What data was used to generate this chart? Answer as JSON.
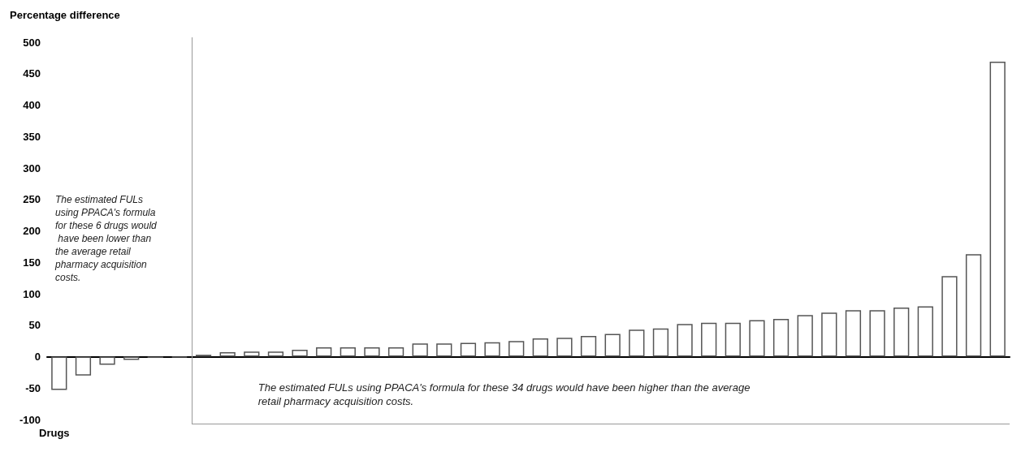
{
  "chart_data": {
    "type": "bar",
    "ylabel": "Percentage difference",
    "xlabel": "Drugs",
    "categories": [
      null,
      null,
      null,
      null,
      null,
      null,
      null,
      null,
      null,
      null,
      null,
      null,
      null,
      null,
      null,
      null,
      null,
      null,
      null,
      null,
      null,
      null,
      null,
      null,
      null,
      null,
      null,
      null,
      null,
      null,
      null,
      null,
      null,
      null,
      null,
      null,
      null,
      null,
      null,
      null
    ],
    "values": [
      -53,
      -30,
      -13,
      -5,
      -2,
      -1,
      3,
      7,
      8,
      8,
      11,
      15,
      15,
      15,
      15,
      21,
      21,
      22,
      23,
      25,
      29,
      30,
      33,
      36,
      43,
      45,
      52,
      54,
      54,
      58,
      60,
      66,
      70,
      74,
      74,
      78,
      80,
      128,
      163,
      469
    ],
    "colors": [
      "#ffffff",
      "#ffffff",
      "#ffffff",
      "#ffffff",
      "#ffffff",
      "#555555",
      "#ffffff",
      "#ffffff",
      "#ffffff",
      "#ffffff",
      "#ffffff",
      "#ffffff",
      "#ffffff",
      "#ffffff",
      "#ffffff",
      "#ffffff",
      "#ffffff",
      "#ffffff",
      "#ffffff",
      "#ffffff",
      "#ffffff",
      "#ffffff",
      "#ffffff",
      "#ffffff",
      "#ffffff",
      "#ffffff",
      "#ffffff",
      "#ffffff",
      "#ffffff",
      "#ffffff",
      "#ffffff",
      "#ffffff",
      "#ffffff",
      "#ffffff",
      "#ffffff",
      "#ffffff",
      "#ffffff",
      "#ffffff",
      "#ffffff",
      "#ffffff"
    ],
    "ylim": [
      -100,
      500
    ],
    "yticks": [
      -100,
      -50,
      0,
      50,
      100,
      150,
      200,
      250,
      300,
      350,
      400,
      450,
      500
    ],
    "grid": false,
    "annotations": [
      "The estimated FULs using PPACA's formula for these 6 drugs would have been lower than the average retail pharmacy acquisition costs.",
      "The estimated FULs using PPACA's formula for these 34 drugs would have been higher than the average retail pharmacy acquisition costs."
    ]
  }
}
